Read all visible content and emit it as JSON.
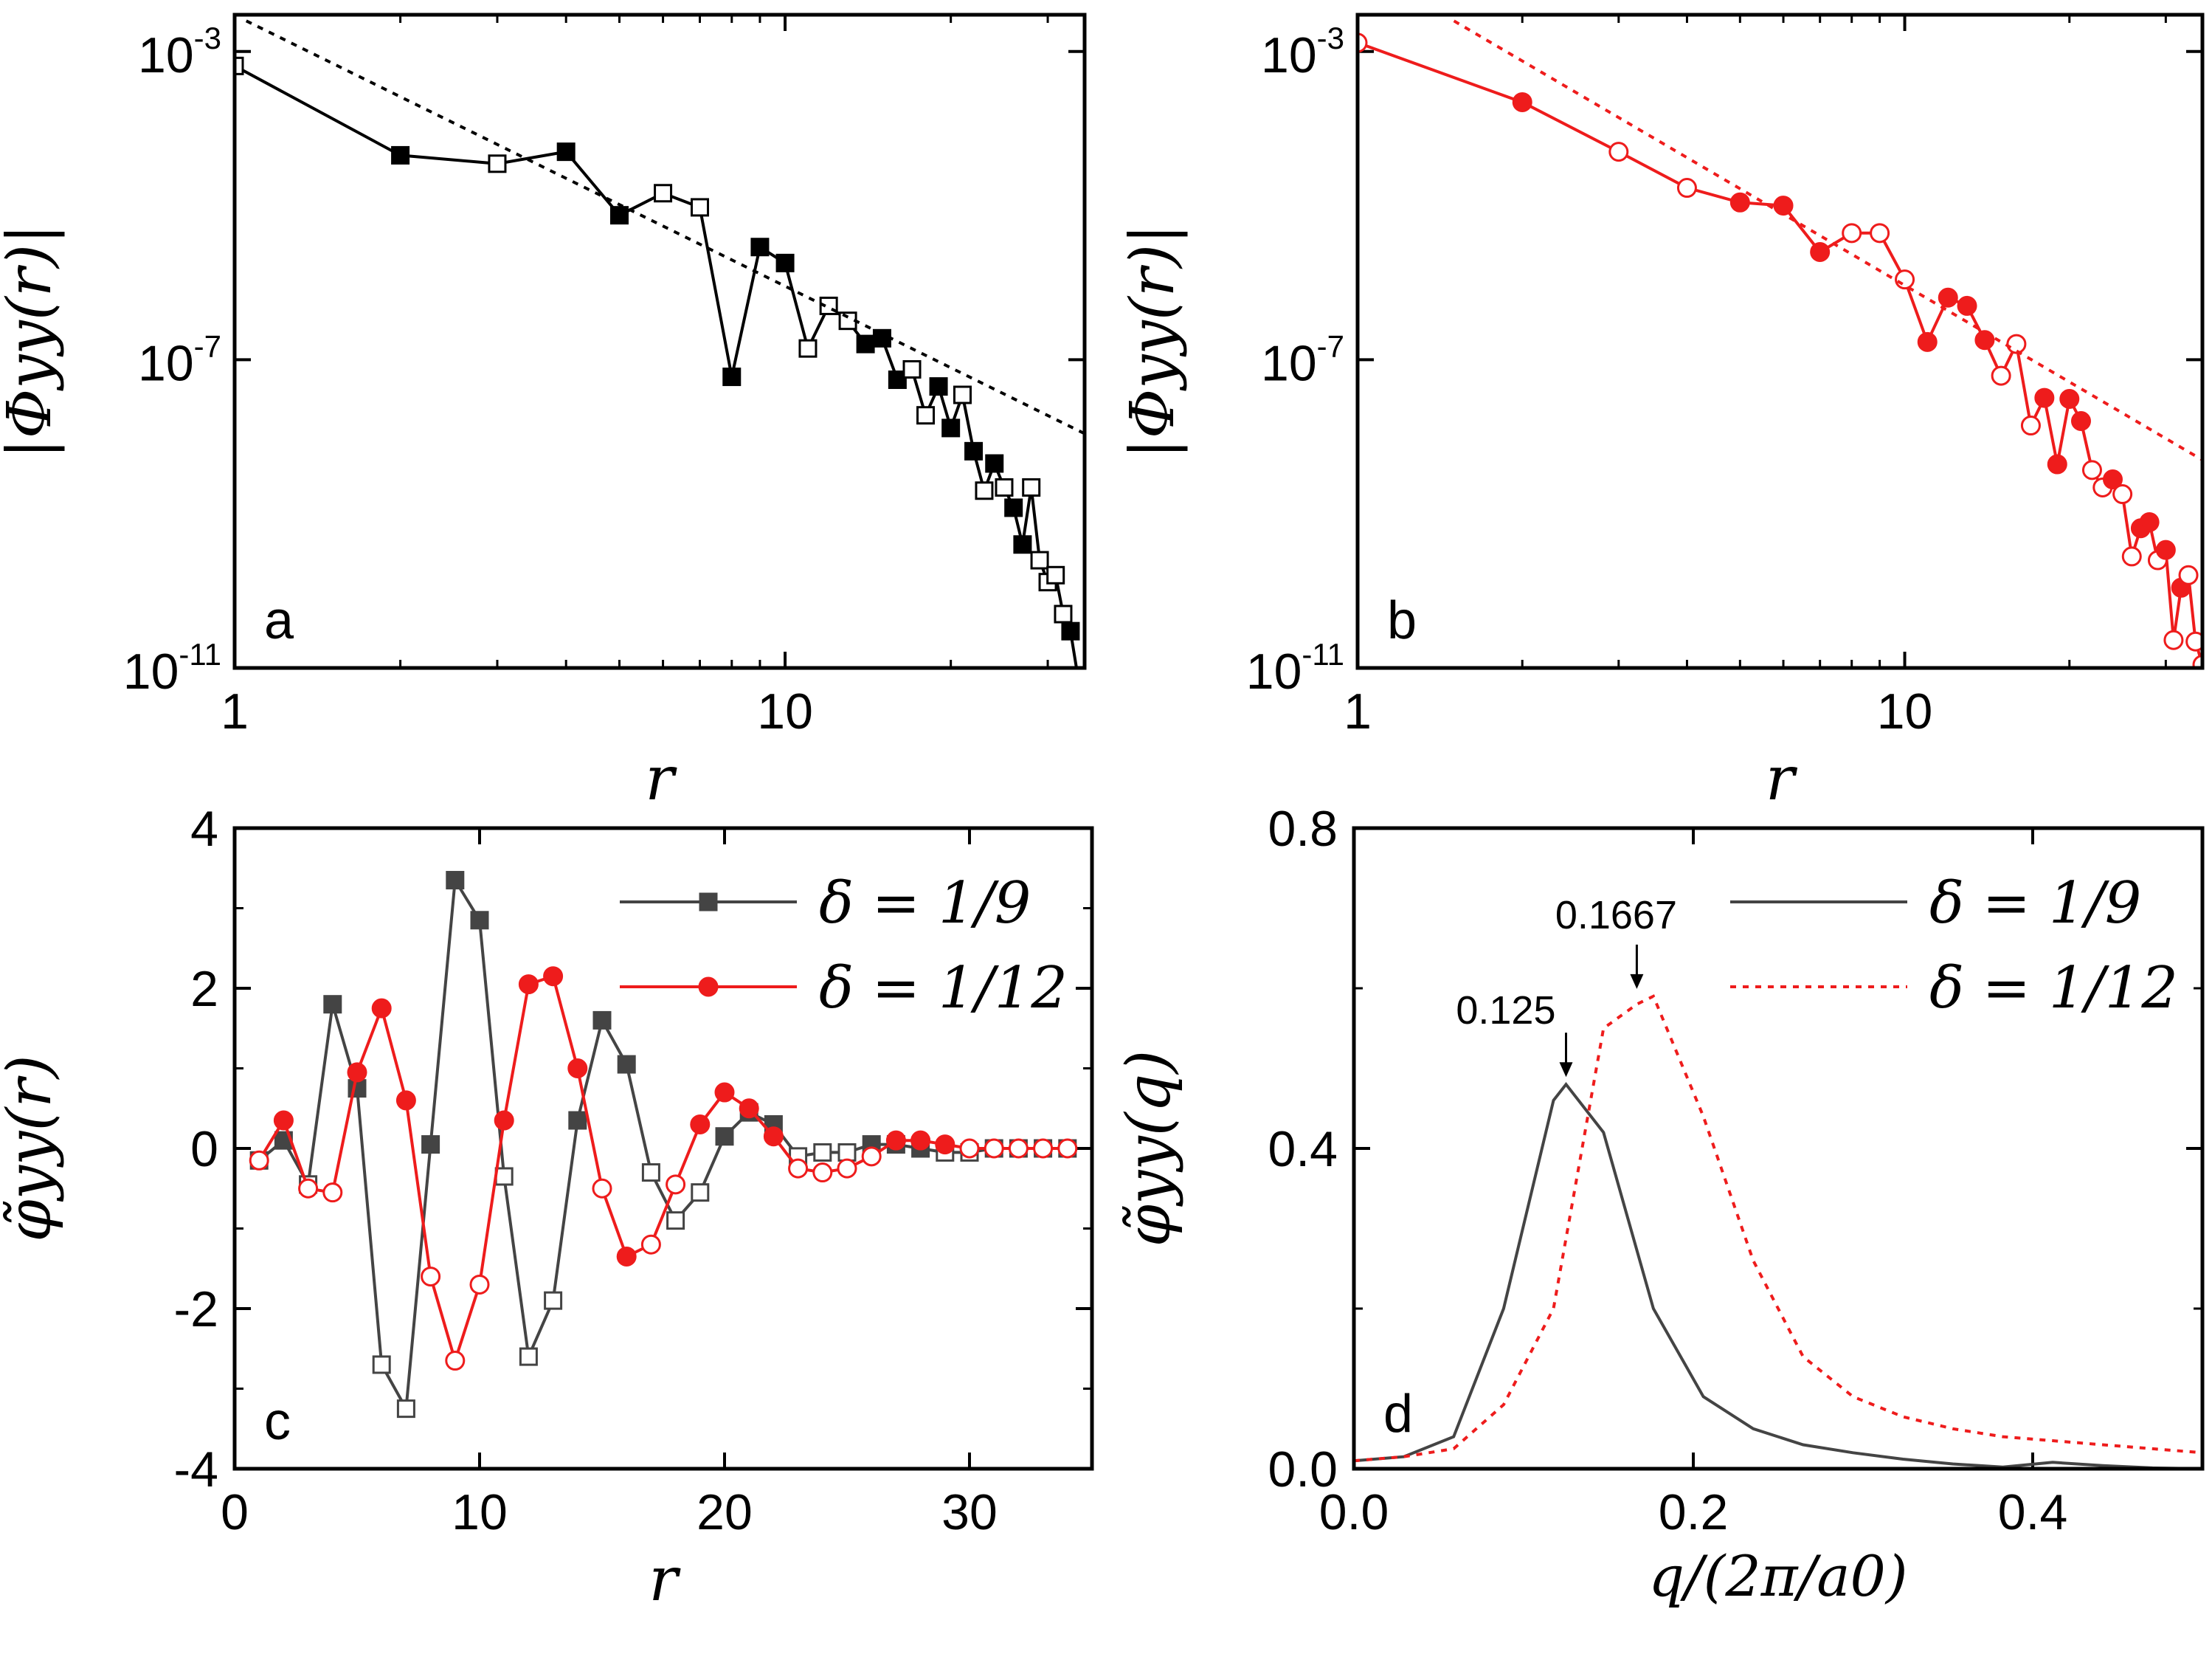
{
  "figure": {
    "colors": {
      "black": "#000000",
      "red": "#ee1c1c",
      "gray": "#444444"
    }
  },
  "chart_data": [
    {
      "id": "a",
      "type": "line",
      "panel_label": "a",
      "xlabel": "r",
      "ylabel": "|Φyy(r)|",
      "xscale": "log",
      "yscale": "log",
      "xlim": [
        1,
        35
      ],
      "ylim": [
        1e-11,
        0.003
      ],
      "xticks": [
        {
          "value": 1,
          "label": "1"
        },
        {
          "value": 10,
          "label": "10"
        }
      ],
      "yticks": [
        {
          "value": 0.001,
          "base": "10",
          "exp": "-3"
        },
        {
          "value": 1e-07,
          "base": "10",
          "exp": "-7"
        },
        {
          "value": 1e-11,
          "base": "10",
          "exp": "-11"
        }
      ],
      "series": [
        {
          "name": "|Φyy(r)| δ=1/9",
          "color": "#000000",
          "marker": "square",
          "x": [
            1,
            2,
            3,
            4,
            5,
            6,
            7,
            8,
            9,
            10,
            11,
            12,
            13,
            14,
            15,
            16,
            17,
            18,
            19,
            20,
            21,
            22,
            23,
            24,
            25,
            26,
            27,
            28,
            29,
            30,
            31,
            32,
            33,
            34
          ],
          "y": [
            0.00065,
            4.5e-05,
            3.5e-05,
            5e-05,
            7.5e-06,
            1.45e-05,
            9.5e-06,
            6e-08,
            2.9e-06,
            1.8e-06,
            1.4e-07,
            5e-07,
            3.2e-07,
            1.6e-07,
            1.9e-07,
            5.5e-08,
            7.5e-08,
            1.9e-08,
            4.5e-08,
            1.3e-08,
            3.5e-08,
            6.5e-09,
            2e-09,
            4.5e-09,
            2.2e-09,
            1.2e-09,
            4e-10,
            2.2e-09,
            2.5e-10,
            1.3e-10,
            1.6e-10,
            5e-11,
            3e-11,
            8e-12
          ],
          "filled": [
            false,
            true,
            false,
            true,
            true,
            false,
            false,
            true,
            true,
            true,
            false,
            false,
            false,
            true,
            true,
            true,
            false,
            false,
            true,
            true,
            false,
            true,
            false,
            true,
            false,
            true,
            true,
            false,
            false,
            false,
            false,
            false,
            true,
            true
          ]
        },
        {
          "name": "power-law fit",
          "color": "#000000",
          "style": "dotted",
          "x": [
            1.05,
            35
          ],
          "y": [
            0.0025,
            1.1e-08
          ]
        }
      ]
    },
    {
      "id": "b",
      "type": "line",
      "panel_label": "b",
      "xlabel": "r",
      "ylabel": "|Φyy(r)|",
      "xscale": "log",
      "yscale": "log",
      "xlim": [
        1,
        35
      ],
      "ylim": [
        1e-11,
        0.003
      ],
      "xticks": [
        {
          "value": 1,
          "label": "1"
        },
        {
          "value": 10,
          "label": "10"
        }
      ],
      "yticks": [
        {
          "value": 0.001,
          "base": "10",
          "exp": "-3"
        },
        {
          "value": 1e-07,
          "base": "10",
          "exp": "-7"
        },
        {
          "value": 1e-11,
          "base": "10",
          "exp": "-11"
        }
      ],
      "series": [
        {
          "name": "|Φyy(r)| δ=1/12",
          "color": "#ee1c1c",
          "marker": "circle",
          "x": [
            1,
            2,
            3,
            4,
            5,
            6,
            7,
            8,
            9,
            10,
            11,
            12,
            13,
            14,
            15,
            16,
            17,
            18,
            19,
            20,
            21,
            22,
            23,
            24,
            25,
            26,
            27,
            28,
            29,
            30,
            31,
            32,
            33,
            34,
            35
          ],
          "y": [
            0.0013,
            0.00022,
            5e-05,
            1.7e-05,
            1.1e-05,
            1e-05,
            2.5e-06,
            4.4e-06,
            4.4e-06,
            1.1e-06,
            1.7e-07,
            6.4e-07,
            5e-07,
            1.8e-07,
            6.2e-08,
            1.6e-07,
            1.4e-08,
            3.2e-08,
            4.4e-09,
            3.1e-08,
            1.6e-08,
            3.7e-09,
            2.2e-09,
            2.8e-09,
            1.8e-09,
            2.8e-10,
            6.5e-10,
            7.8e-10,
            2.5e-10,
            3.4e-10,
            2.3e-11,
            1.1e-10,
            1.6e-10,
            2.2e-11,
            1.1e-11
          ],
          "filled": [
            false,
            true,
            false,
            false,
            true,
            true,
            true,
            false,
            false,
            false,
            true,
            true,
            true,
            true,
            false,
            false,
            false,
            true,
            true,
            true,
            true,
            false,
            false,
            true,
            false,
            false,
            true,
            true,
            false,
            true,
            false,
            true,
            false,
            false,
            false
          ]
        },
        {
          "name": "power-law fit",
          "color": "#ee1c1c",
          "style": "dotted",
          "x": [
            1.5,
            35
          ],
          "y": [
            0.0025,
            5e-09
          ]
        }
      ]
    },
    {
      "id": "c",
      "type": "line",
      "panel_label": "c",
      "xlabel": "r",
      "ylabel": "φ̃yy(r)",
      "xlim": [
        0,
        35
      ],
      "ylim": [
        -4,
        4
      ],
      "xticks": [
        {
          "value": 0,
          "label": "0"
        },
        {
          "value": 10,
          "label": "10"
        },
        {
          "value": 20,
          "label": "20"
        },
        {
          "value": 30,
          "label": "30"
        }
      ],
      "yticks": [
        {
          "value": 4,
          "label": "4"
        },
        {
          "value": 2,
          "label": "2"
        },
        {
          "value": 0,
          "label": "0"
        },
        {
          "value": -2,
          "label": "-2"
        },
        {
          "value": -4,
          "label": "-4"
        }
      ],
      "legend": {
        "placement": "top-right",
        "entries": [
          "δ = 1/9",
          "δ = 1/12"
        ]
      },
      "series": [
        {
          "name": "δ = 1/9",
          "color": "#444444",
          "marker": "square",
          "x": [
            1,
            2,
            3,
            4,
            5,
            6,
            7,
            8,
            9,
            10,
            11,
            12,
            13,
            14,
            15,
            16,
            17,
            18,
            19,
            20,
            21,
            22,
            23,
            24,
            25,
            26,
            27,
            28,
            29,
            30,
            31,
            32,
            33,
            34
          ],
          "y": [
            -0.15,
            0.1,
            -0.45,
            1.8,
            0.75,
            -2.7,
            -3.25,
            0.05,
            3.35,
            2.85,
            -0.35,
            -2.6,
            -1.9,
            0.35,
            1.6,
            1.05,
            -0.3,
            -0.9,
            -0.55,
            0.15,
            0.45,
            0.3,
            -0.1,
            -0.05,
            -0.05,
            0.05,
            0.05,
            0.0,
            -0.05,
            -0.05,
            0.0,
            0.0,
            0.0,
            0.0
          ],
          "filled": [
            false,
            true,
            false,
            true,
            true,
            false,
            false,
            true,
            true,
            true,
            false,
            false,
            false,
            true,
            true,
            true,
            false,
            false,
            false,
            true,
            true,
            true,
            false,
            false,
            false,
            true,
            true,
            true,
            false,
            false,
            false,
            false,
            false,
            false
          ]
        },
        {
          "name": "δ = 1/12",
          "color": "#ee1c1c",
          "marker": "circle",
          "x": [
            1,
            2,
            3,
            4,
            5,
            6,
            7,
            8,
            9,
            10,
            11,
            12,
            13,
            14,
            15,
            16,
            17,
            18,
            19,
            20,
            21,
            22,
            23,
            24,
            25,
            26,
            27,
            28,
            29,
            30,
            31,
            32,
            33,
            34
          ],
          "y": [
            -0.15,
            0.35,
            -0.5,
            -0.55,
            0.95,
            1.75,
            0.6,
            -1.6,
            -2.65,
            -1.7,
            0.35,
            2.05,
            2.15,
            1.0,
            -0.5,
            -1.35,
            -1.2,
            -0.45,
            0.3,
            0.7,
            0.5,
            0.15,
            -0.25,
            -0.3,
            -0.25,
            -0.1,
            0.1,
            0.1,
            0.05,
            0.0,
            0.0,
            0.0,
            0.0,
            0.0
          ],
          "filled": [
            false,
            true,
            false,
            false,
            true,
            true,
            true,
            false,
            false,
            false,
            true,
            true,
            true,
            true,
            false,
            true,
            false,
            false,
            true,
            true,
            true,
            true,
            false,
            false,
            false,
            false,
            true,
            true,
            true,
            false,
            false,
            false,
            false,
            false
          ]
        }
      ]
    },
    {
      "id": "d",
      "type": "line",
      "panel_label": "d",
      "xlabel": "q/(2π/a0)",
      "ylabel": "φ̃yy(q)",
      "xlim": [
        0,
        0.5
      ],
      "ylim": [
        0,
        0.8
      ],
      "xticks": [
        {
          "value": 0,
          "label": "0.0"
        },
        {
          "value": 0.2,
          "label": "0.2"
        },
        {
          "value": 0.4,
          "label": "0.4"
        }
      ],
      "yticks": [
        {
          "value": 0.8,
          "label": "0.8"
        },
        {
          "value": 0.4,
          "label": "0.4"
        },
        {
          "value": 0,
          "label": "0.0"
        }
      ],
      "legend": {
        "placement": "top-right",
        "entries": [
          "δ = 1/9",
          "δ = 1/12"
        ]
      },
      "annotations": [
        {
          "text": "0.1667",
          "x": 0.1667,
          "y": 0.59
        },
        {
          "text": "0.125",
          "x": 0.125,
          "y": 0.48
        }
      ],
      "series": [
        {
          "name": "δ = 1/9",
          "color": "#444444",
          "style": "solid",
          "x": [
            0,
            0.0294,
            0.0588,
            0.0882,
            0.1176,
            0.125,
            0.1471,
            0.1765,
            0.2059,
            0.2353,
            0.2647,
            0.2941,
            0.3235,
            0.3529,
            0.3824,
            0.4118,
            0.4412,
            0.4706,
            0.5
          ],
          "y": [
            0.01,
            0.015,
            0.04,
            0.2,
            0.46,
            0.48,
            0.42,
            0.2,
            0.09,
            0.05,
            0.03,
            0.02,
            0.012,
            0.006,
            0.002,
            0.008,
            0.004,
            0.001,
            0.0
          ]
        },
        {
          "name": "δ = 1/12",
          "color": "#ee1c1c",
          "style": "dotted",
          "x": [
            0,
            0.0294,
            0.0588,
            0.0882,
            0.1176,
            0.1471,
            0.1667,
            0.1765,
            0.2059,
            0.2353,
            0.2647,
            0.2941,
            0.3235,
            0.3529,
            0.3824,
            0.4118,
            0.4412,
            0.4706,
            0.5
          ],
          "y": [
            0.01,
            0.015,
            0.025,
            0.08,
            0.2,
            0.55,
            0.58,
            0.59,
            0.44,
            0.26,
            0.14,
            0.09,
            0.065,
            0.05,
            0.04,
            0.035,
            0.03,
            0.025,
            0.02
          ]
        }
      ]
    }
  ]
}
